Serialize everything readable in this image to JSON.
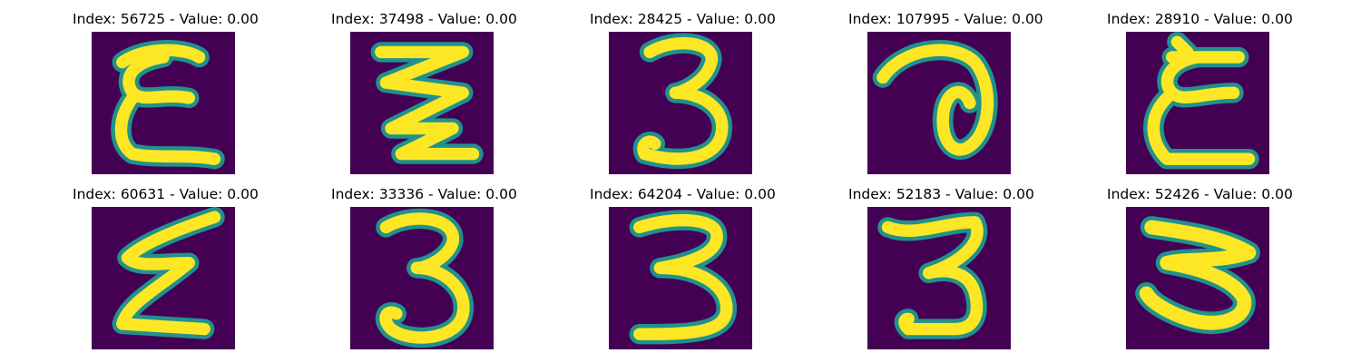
{
  "figure": {
    "colormap": {
      "background": "#440154",
      "mid": "#21918c",
      "light": "#5ec962",
      "high": "#fde725"
    },
    "panels": [
      {
        "title": "Index: 56725 - Value: 0.00"
      },
      {
        "title": "Index: 37498 - Value: 0.00"
      },
      {
        "title": "Index: 28425 - Value: 0.00"
      },
      {
        "title": "Index: 107995 - Value: 0.00"
      },
      {
        "title": "Index: 28910 - Value: 0.00"
      },
      {
        "title": "Index: 60631 - Value: 0.00"
      },
      {
        "title": "Index: 33336 - Value: 0.00"
      },
      {
        "title": "Index: 64204 - Value: 0.00"
      },
      {
        "title": "Index: 52183 - Value: 0.00"
      },
      {
        "title": "Index: 52426 - Value: 0.00"
      }
    ]
  }
}
